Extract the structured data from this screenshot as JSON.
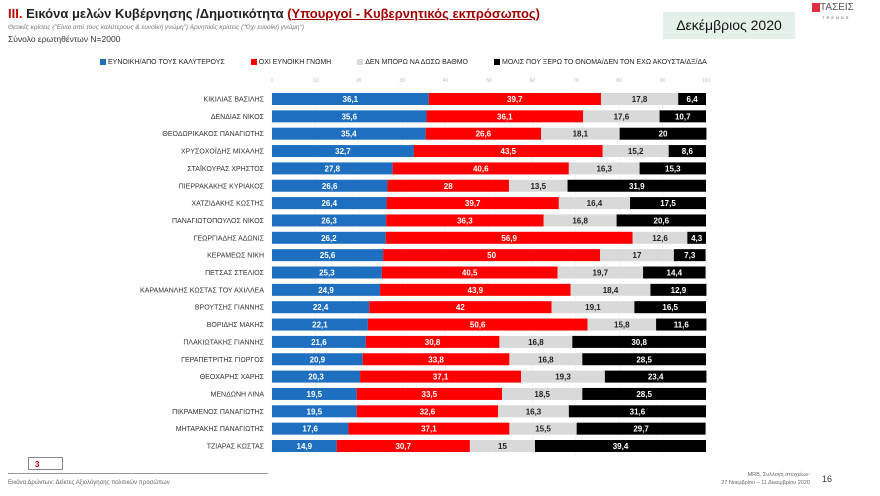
{
  "header": {
    "title_num": "III.",
    "title": "Εικόνα μελών Κυβέρνησης /Δημοτικότητα",
    "title_sub": "(Υπουργοί - Κυβερνητικός εκπρόσωπος)",
    "subtitle": "Θετικές κρίσεις (\"Είναι από τους καλύτερους & ευνοϊκή γνώμη\") Αρνητικές κρίσεις (\"Όχι ευνοϊκή γνώμη\")",
    "sample": "Σύνολο ερωτηθέντων Ν=2000",
    "date": "Δεκέμβριος 2020",
    "logo_text": "ΤΑΣΕΙΣ",
    "logo_sub": "TRENDS"
  },
  "footer": {
    "page_box": "3",
    "caption": "Εικόνα Δρώντων: Δείκτες Αξιολόγησης πολιτικών προσώπων",
    "source_line1": "MRB, Συλλογή στοιχείων:",
    "source_line2": "27 Νοεμβρίου – 11 Δεκεμβρίου 2020",
    "page_number": "16"
  },
  "chart_data": {
    "type": "bar",
    "orientation": "horizontal",
    "stacked": true,
    "xlim": [
      0,
      100
    ],
    "xticks": [
      "0",
      "10",
      "20",
      "30",
      "40",
      "50",
      "60",
      "70",
      "80",
      "90",
      "100"
    ],
    "legend_position": "top",
    "categories": [
      "ΚΙΚΙΛΙΑΣ ΒΑΣΙΛΗΣ",
      "ΔΕΝΔΙΑΣ ΝΙΚΟΣ",
      "ΘΕΟΔΩΡΙΚΑΚΟΣ ΠΑΝΑΓΙΩΤΗΣ",
      "ΧΡΥΣΟΧΟΪΔΗΣ ΜΙΧΑΛΗΣ",
      "ΣΤΑΪΚΟΥΡΑΣ ΧΡΗΣΤΟΣ",
      "ΠΙΕΡΡΑΚΑΚΗΣ ΚΥΡΙΑΚΟΣ",
      "ΧΑΤΖΙΔΑΚΗΣ ΚΩΣΤΗΣ",
      "ΠΑΝΑΓΙΩΤΟΠΟΥΛΟΣ ΝΙΚΟΣ",
      "ΓΕΩΡΓΙΑΔΗΣ ΑΔΩΝΙΣ",
      "ΚΕΡΑΜΕΩΣ ΝΙΚΗ",
      "ΠΕΤΣΑΣ ΣΤΕΛΙΟΣ",
      "ΚΑΡΑΜΑΝΛΗΣ ΚΩΣΤΑΣ ΤΟΥ ΑΧΙΛΛΕΑ",
      "ΒΡΟΥΤΣΗΣ ΓΙΑΝΝΗΣ",
      "ΒΟΡΙΔΗΣ ΜΑΚΗΣ",
      "ΠΛΑΚΙΩΤΑΚΗΣ ΓΙΑΝΝΗΣ",
      "ΓΕΡΑΠΕΤΡΙΤΗΣ ΓΙΩΡΓΟΣ",
      "ΘΕΟΧΑΡΗΣ ΧΑΡΗΣ",
      "ΜΕΝΔΩΝΗ ΛΙΝΑ",
      "ΠΙΚΡΑΜΕΝΟΣ ΠΑΝΑΓΙΩΤΗΣ",
      "ΜΗΤΑΡΑΚΗΣ ΠΑΝΑΓΙΩΤΗΣ",
      "ΤΖΙΑΡΑΣ ΚΩΣΤΑΣ"
    ],
    "series": [
      {
        "name": "ΕΥΝΟΙΚΗ/ΑΠΟ ΤΟΥΣ ΚΑΛΥΤΕΡΟΥΣ",
        "color": "#1f6fc0",
        "label_color": "#ffffff",
        "values": [
          36.1,
          35.6,
          35.4,
          32.7,
          27.8,
          26.6,
          26.4,
          26.3,
          26.2,
          25.6,
          25.3,
          24.9,
          22.4,
          22.1,
          21.6,
          20.9,
          20.3,
          19.5,
          19.5,
          17.6,
          14.9
        ]
      },
      {
        "name": "ΟΧΙ ΕΥΝΟΙΚΗ ΓΝΩΜΗ",
        "color": "#ff0000",
        "label_color": "#ffffff",
        "values": [
          39.7,
          36.1,
          26.6,
          43.5,
          40.6,
          28,
          39.7,
          36.3,
          56.9,
          50,
          40.5,
          43.9,
          42,
          50.6,
          30.8,
          33.8,
          37.1,
          33.5,
          32.6,
          37.1,
          30.7
        ]
      },
      {
        "name": "ΔΕΝ ΜΠΟΡΩ ΝΑ ΔΩΣΩ ΒΑΘΜΟ",
        "color": "#d9d9d9",
        "label_color": "#222222",
        "values": [
          17.8,
          17.6,
          18.1,
          15.2,
          16.3,
          13.5,
          16.4,
          16.8,
          12.6,
          17,
          19.7,
          18.4,
          19.1,
          15.8,
          16.8,
          16.8,
          19.3,
          18.5,
          16.3,
          15.5,
          15
        ]
      },
      {
        "name": "ΜΟΛΙΣ ΠΟΥ ΞΕΡΩ ΤΟ ΟΝΟΜΑ/ΔΕΝ ΤΟΝ ΕΧΩ ΑΚΟΥΣΤΑ/ΔΞ/ΔΑ",
        "color": "#000000",
        "label_color": "#ffffff",
        "values": [
          6.4,
          10.7,
          20,
          8.6,
          15.3,
          31.9,
          17.5,
          20.6,
          4.3,
          7.3,
          14.4,
          12.9,
          16.5,
          11.6,
          30.8,
          28.5,
          23.4,
          28.5,
          31.6,
          29.7,
          39.4
        ]
      }
    ]
  }
}
